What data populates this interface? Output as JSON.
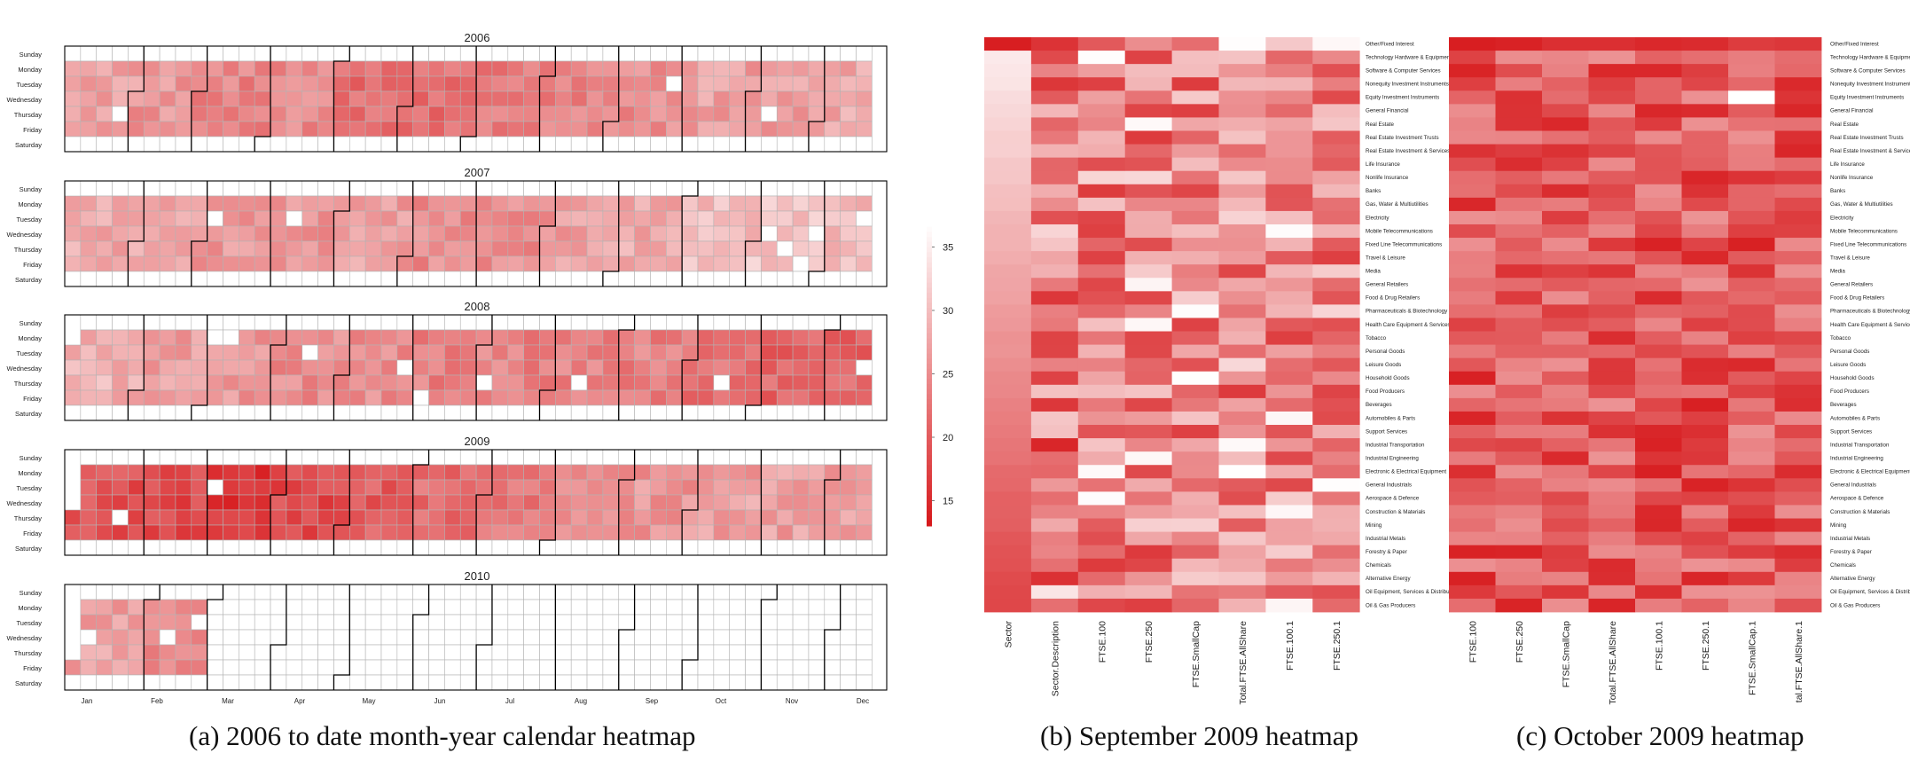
{
  "colors": {
    "low": "#d7191c",
    "high": "#ffffff",
    "cell_border": "#b3b3b3",
    "month_border": "#000000"
  },
  "captions": {
    "a": "(a) 2006 to date month-year calendar heatmap",
    "b": "(b) September 2009 heatmap",
    "c": "(c)  October 2009 heatmap"
  },
  "chart_data": [
    {
      "type": "heatmap",
      "subtype": "calendar",
      "years": [
        "2006",
        "2007",
        "2008",
        "2009",
        "2010"
      ],
      "weekdays": [
        "Sunday",
        "Monday",
        "Tuesday",
        "Wednesday",
        "Thursday",
        "Friday",
        "Saturday"
      ],
      "months": [
        "Jan",
        "Feb",
        "Mar",
        "Apr",
        "May",
        "Jun",
        "Jul",
        "Aug",
        "Sep",
        "Oct",
        "Nov",
        "Dec"
      ],
      "colorbar": {
        "ticks": [
          "35",
          "30",
          "25",
          "20",
          "15"
        ],
        "min": 13,
        "max": 37
      },
      "monthly_level": {
        "2006": [
          27,
          26,
          24,
          25,
          22,
          22,
          23,
          24,
          25,
          27,
          27,
          28
        ],
        "2007": [
          28,
          28,
          26,
          26,
          27,
          25,
          25,
          27,
          28,
          30,
          31,
          30
        ],
        "2008": [
          29,
          27,
          26,
          25,
          25,
          24,
          24,
          24,
          24,
          22,
          21,
          21
        ],
        "2009": [
          19,
          18,
          16,
          18,
          20,
          22,
          23,
          25,
          26,
          27,
          27,
          27
        ],
        "2010": [
          27,
          25
        ]
      },
      "data_end": "2010-02-28",
      "grid": true,
      "legend": "right"
    },
    {
      "type": "heatmap",
      "rows": [
        "Other/Fixed Interest",
        "Technology Hardware & Equipment",
        "Software & Computer Services",
        "Nonequity Investment Instruments",
        "Equity Investment Instruments",
        "General Financial",
        "Real Estate",
        "Real Estate Investment Trusts",
        "Real Estate Investment & Services",
        "Life Insurance",
        "Nonlife Insurance",
        "Banks",
        "Gas, Water & Multiutilities",
        "Electricity",
        "Mobile Telecommunications",
        "Fixed Line Telecommunications",
        "Travel & Leisure",
        "Media",
        "General Retailers",
        "Food & Drug Retailers",
        "Pharmaceuticals & Biotechnology",
        "Health Care Equipment & Services",
        "Tobacco",
        "Personal Goods",
        "Leisure Goods",
        "Household Goods",
        "Food Producers",
        "Beverages",
        "Automobiles & Parts",
        "Support Services",
        "Industrial Transportation",
        "Industrial Engineering",
        "Electronic & Electrical Equipment",
        "General Industrials",
        "Aerospace & Defence",
        "Construction & Materials",
        "Mining",
        "Industrial Metals",
        "Forestry & Paper",
        "Chemicals",
        "Alternative Energy",
        "Oil Equipment, Services & Distribution",
        "Oil & Gas Producers"
      ],
      "columns": [
        "Sector",
        "Sector.Description",
        "FTSE.100",
        "FTSE.250",
        "FTSE.SmallCap",
        "Total.FTSE.AllShare",
        "FTSE.100.1",
        "FTSE.250.1"
      ],
      "gradient_columns": [
        "Sector",
        "Sector.Description"
      ]
    },
    {
      "type": "heatmap",
      "rows": [
        "Other/Fixed Interest",
        "Technology Hardware & Equipment",
        "Software & Computer Services",
        "Nonequity Investment Instruments",
        "Equity Investment Instruments",
        "General Financial",
        "Real Estate",
        "Real Estate Investment Trusts",
        "Real Estate Investment & Services",
        "Life Insurance",
        "Nonlife Insurance",
        "Banks",
        "Gas, Water & Multiutilities",
        "Electricity",
        "Mobile Telecommunications",
        "Fixed Line Telecommunications",
        "Travel & Leisure",
        "Media",
        "General Retailers",
        "Food & Drug Retailers",
        "Pharmaceuticals & Biotechnology",
        "Health Care Equipment & Services",
        "Tobacco",
        "Personal Goods",
        "Leisure Goods",
        "Household Goods",
        "Food Producers",
        "Beverages",
        "Automobiles & Parts",
        "Support Services",
        "Industrial Transportation",
        "Industrial Engineering",
        "Electronic & Electrical Equipment",
        "General Industrials",
        "Aerospace & Defence",
        "Construction & Materials",
        "Mining",
        "Industrial Metals",
        "Forestry & Paper",
        "Chemicals",
        "Alternative Energy",
        "Oil Equipment, Services & Distribution",
        "Oil & Gas Producers"
      ],
      "columns": [
        "FTSE.100",
        "FTSE.250",
        "FTSE.SmallCap",
        "Total.FTSE.AllShare",
        "FTSE.100.1",
        "FTSE.250.1",
        "FTSE.SmallCap.1",
        "tal.FTSE.AllShare.1"
      ]
    }
  ]
}
